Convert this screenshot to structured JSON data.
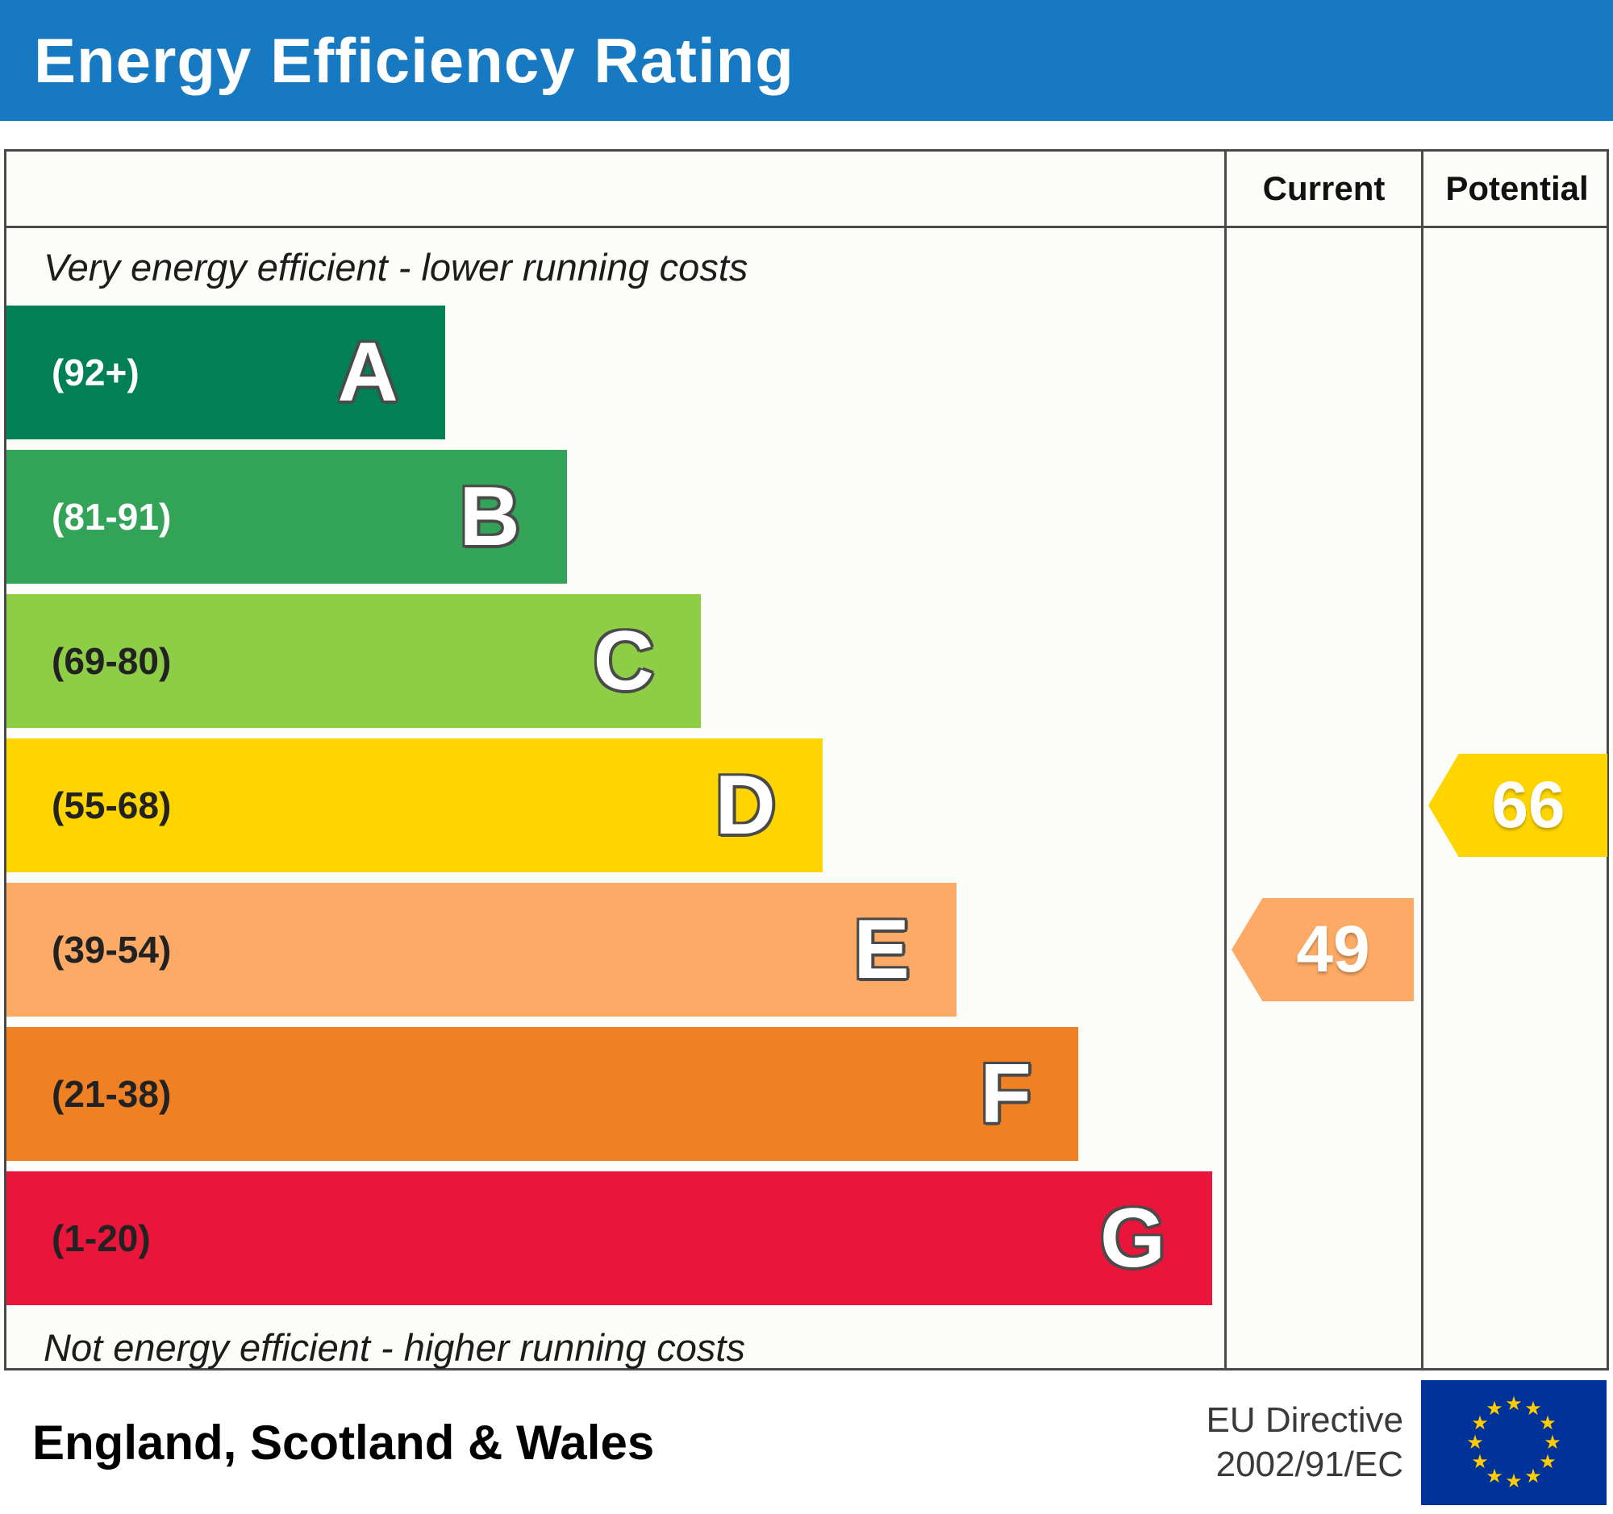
{
  "theme": {
    "header_bg": "#1679c2",
    "header_text": "#ffffff",
    "flag_blue": "#003399",
    "flag_star": "#ffcc00"
  },
  "chart_data": {
    "type": "bar",
    "title": "Energy Efficiency Rating",
    "columns": {
      "current_label": "Current",
      "potential_label": "Potential"
    },
    "caption_top": "Very energy efficient - lower running costs",
    "caption_bottom": "Not energy efficient - higher running costs",
    "bands": [
      {
        "letter": "A",
        "range_label": "(92+)",
        "min": 92,
        "max": 100,
        "color": "#008054",
        "range_label_color": "#ffffff",
        "width_pct": 36
      },
      {
        "letter": "B",
        "range_label": "(81-91)",
        "min": 81,
        "max": 91,
        "color": "#33a357",
        "range_label_color": "#ffffff",
        "width_pct": 46
      },
      {
        "letter": "C",
        "range_label": "(69-80)",
        "min": 69,
        "max": 80,
        "color": "#8dce46",
        "range_label_color": "#222222",
        "width_pct": 57
      },
      {
        "letter": "D",
        "range_label": "(55-68)",
        "min": 55,
        "max": 68,
        "color": "#ffd500",
        "range_label_color": "#222222",
        "width_pct": 67
      },
      {
        "letter": "E",
        "range_label": "(39-54)",
        "min": 39,
        "max": 54,
        "color": "#fcaa65",
        "range_label_color": "#222222",
        "width_pct": 78
      },
      {
        "letter": "F",
        "range_label": "(21-38)",
        "min": 21,
        "max": 38,
        "color": "#ef8023",
        "range_label_color": "#222222",
        "width_pct": 88
      },
      {
        "letter": "G",
        "range_label": "(1-20)",
        "min": 1,
        "max": 20,
        "color": "#e9153b",
        "range_label_color": "#222222",
        "width_pct": 99
      }
    ],
    "current": {
      "value": 49,
      "band": "E",
      "color": "#fcaa65"
    },
    "potential": {
      "value": 66,
      "band": "D",
      "color": "#ffd500"
    }
  },
  "footer": {
    "region": "England, Scotland & Wales",
    "directive_line1": "EU Directive",
    "directive_line2": "2002/91/EC"
  }
}
